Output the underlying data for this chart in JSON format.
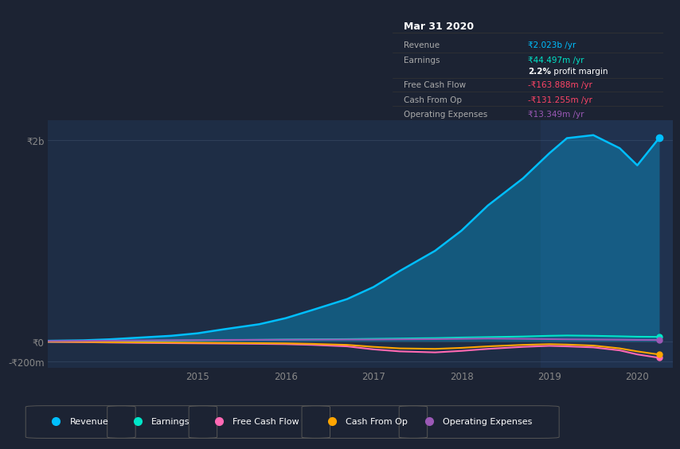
{
  "background_color": "#1c2333",
  "chart_bg_color": "#1e2d45",
  "x_years": [
    2013.3,
    2013.7,
    2014.0,
    2014.3,
    2014.7,
    2015.0,
    2015.3,
    2015.7,
    2016.0,
    2016.3,
    2016.7,
    2017.0,
    2017.3,
    2017.7,
    2018.0,
    2018.3,
    2018.7,
    2019.0,
    2019.2,
    2019.5,
    2019.8,
    2020.0,
    2020.25
  ],
  "revenue": [
    5,
    10,
    20,
    35,
    55,
    80,
    120,
    170,
    230,
    310,
    420,
    540,
    700,
    900,
    1100,
    1350,
    1620,
    1870,
    2020,
    2050,
    1920,
    1750,
    2023
  ],
  "earnings": [
    -5,
    -3,
    0,
    5,
    8,
    10,
    12,
    15,
    18,
    20,
    22,
    25,
    28,
    32,
    38,
    42,
    48,
    55,
    58,
    55,
    50,
    46,
    44.5
  ],
  "free_cash_flow": [
    -5,
    -8,
    -12,
    -15,
    -18,
    -20,
    -22,
    -25,
    -28,
    -35,
    -50,
    -80,
    -100,
    -110,
    -95,
    -75,
    -55,
    -45,
    -50,
    -60,
    -90,
    -130,
    -163.9
  ],
  "cash_from_op": [
    -3,
    -5,
    -8,
    -10,
    -12,
    -14,
    -16,
    -18,
    -20,
    -25,
    -35,
    -55,
    -70,
    -75,
    -65,
    -50,
    -35,
    -28,
    -32,
    -42,
    -70,
    -100,
    -131.3
  ],
  "operating_exp": [
    3,
    5,
    7,
    9,
    11,
    12,
    14,
    15,
    16,
    17,
    18,
    18,
    20,
    22,
    25,
    28,
    25,
    22,
    20,
    18,
    16,
    14,
    13.3
  ],
  "revenue_color": "#00bfff",
  "earnings_color": "#00e5c8",
  "fcf_color": "#ff69b4",
  "cfo_color": "#ffa500",
  "opex_color": "#9b59b6",
  "y_tick_labels": [
    "-₹200m",
    "₹0",
    "₹2b"
  ],
  "y_tick_vals": [
    -200,
    0,
    2000
  ],
  "x_tick_labels": [
    "2015",
    "2016",
    "2017",
    "2018",
    "2019",
    "2020"
  ],
  "x_tick_vals": [
    2015,
    2016,
    2017,
    2018,
    2019,
    2020
  ],
  "legend_labels": [
    "Revenue",
    "Earnings",
    "Free Cash Flow",
    "Cash From Op",
    "Operating Expenses"
  ],
  "infobox_title": "Mar 31 2020",
  "infobox_rows": [
    {
      "label": "Revenue",
      "value": "₹2.023b /yr",
      "value_color": "#00bfff"
    },
    {
      "label": "Earnings",
      "value": "₹44.497m /yr",
      "value_color": "#00e5c8"
    },
    {
      "label": "",
      "value": "2.2% profit margin",
      "value_color": "#ffffff"
    },
    {
      "label": "Free Cash Flow",
      "value": "-₹163.888m /yr",
      "value_color": "#ff4466"
    },
    {
      "label": "Cash From Op",
      "value": "-₹131.255m /yr",
      "value_color": "#ff4466"
    },
    {
      "label": "Operating Expenses",
      "value": "₹13.349m /yr",
      "value_color": "#9b59b6"
    }
  ]
}
